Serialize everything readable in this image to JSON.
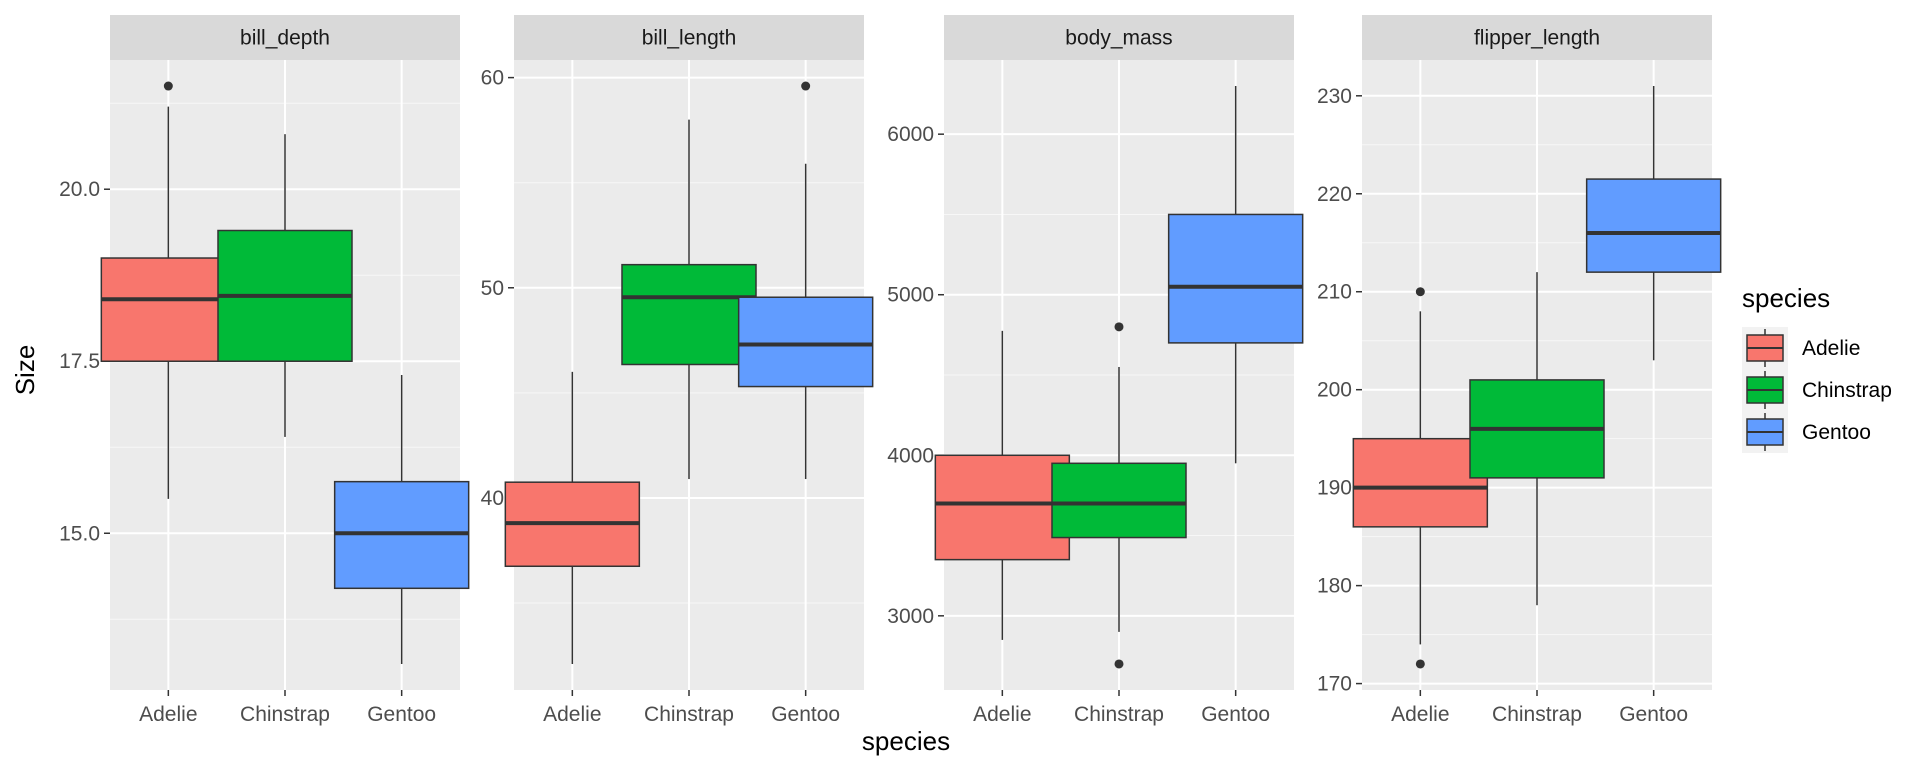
{
  "chart_data": {
    "type": "boxplot",
    "xlabel": "species",
    "ylabel": "Size",
    "categories": [
      "Adelie",
      "Chinstrap",
      "Gentoo"
    ],
    "colors": {
      "Adelie": "#F8766D",
      "Chinstrap": "#00BA38",
      "Gentoo": "#619CFF",
      "panel_bg": "#EBEBEB",
      "strip_bg": "#D9D9D9",
      "grid_major": "#FFFFFF"
    },
    "legend": {
      "title": "species",
      "position": "right",
      "entries": [
        "Adelie",
        "Chinstrap",
        "Gentoo"
      ]
    },
    "facets": [
      {
        "name": "bill_depth",
        "ylim": [
          13.1,
          21.5
        ],
        "yticks": [
          15.0,
          17.5,
          20.0
        ],
        "ytick_labels": [
          "15.0",
          "17.5",
          "20.0"
        ],
        "boxes": [
          {
            "species": "Adelie",
            "whisker_low": 15.5,
            "q1": 17.5,
            "median": 18.4,
            "q3": 19.0,
            "whisker_high": 21.2,
            "outliers": [
              21.5
            ]
          },
          {
            "species": "Chinstrap",
            "whisker_low": 16.4,
            "q1": 17.5,
            "median": 18.45,
            "q3": 19.4,
            "whisker_high": 20.8,
            "outliers": []
          },
          {
            "species": "Gentoo",
            "whisker_low": 13.1,
            "q1": 14.2,
            "median": 15.0,
            "q3": 15.75,
            "whisker_high": 17.3,
            "outliers": []
          }
        ]
      },
      {
        "name": "bill_length",
        "ylim": [
          32.1,
          59.6
        ],
        "yticks": [
          40,
          50,
          60
        ],
        "ytick_labels": [
          "40",
          "50",
          "60"
        ],
        "boxes": [
          {
            "species": "Adelie",
            "whisker_low": 32.1,
            "q1": 36.75,
            "median": 38.8,
            "q3": 40.75,
            "whisker_high": 46.0,
            "outliers": []
          },
          {
            "species": "Chinstrap",
            "whisker_low": 40.9,
            "q1": 46.35,
            "median": 49.55,
            "q3": 51.1,
            "whisker_high": 58.0,
            "outliers": []
          },
          {
            "species": "Gentoo",
            "whisker_low": 40.9,
            "q1": 45.3,
            "median": 47.3,
            "q3": 49.55,
            "whisker_high": 55.9,
            "outliers": [
              59.6
            ]
          }
        ]
      },
      {
        "name": "body_mass",
        "ylim": [
          2700,
          6300
        ],
        "yticks": [
          3000,
          4000,
          5000,
          6000
        ],
        "ytick_labels": [
          "3000",
          "4000",
          "5000",
          "6000"
        ],
        "boxes": [
          {
            "species": "Adelie",
            "whisker_low": 2850,
            "q1": 3350,
            "median": 3700,
            "q3": 4000,
            "whisker_high": 4775,
            "outliers": []
          },
          {
            "species": "Chinstrap",
            "whisker_low": 2900,
            "q1": 3487.5,
            "median": 3700,
            "q3": 3950,
            "whisker_high": 4550,
            "outliers": [
              2700,
              4800
            ]
          },
          {
            "species": "Gentoo",
            "whisker_low": 3950,
            "q1": 4700,
            "median": 5050,
            "q3": 5500,
            "whisker_high": 6300,
            "outliers": []
          }
        ]
      },
      {
        "name": "flipper_length",
        "ylim": [
          172,
          231
        ],
        "yticks": [
          170,
          180,
          190,
          200,
          210,
          220,
          230
        ],
        "ytick_labels": [
          "170",
          "180",
          "190",
          "200",
          "210",
          "220",
          "230"
        ],
        "boxes": [
          {
            "species": "Adelie",
            "whisker_low": 174,
            "q1": 186,
            "median": 190,
            "q3": 195,
            "whisker_high": 208,
            "outliers": [
              172,
              210
            ]
          },
          {
            "species": "Chinstrap",
            "whisker_low": 178,
            "q1": 191,
            "median": 196,
            "q3": 201,
            "whisker_high": 212,
            "outliers": []
          },
          {
            "species": "Gentoo",
            "whisker_low": 203,
            "q1": 212,
            "median": 216,
            "q3": 221.5,
            "whisker_high": 231,
            "outliers": []
          }
        ]
      }
    ]
  }
}
